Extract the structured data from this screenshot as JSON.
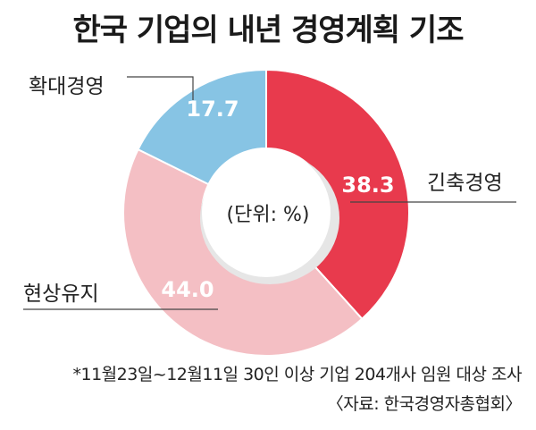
{
  "title": "한국 기업의 내년 경영계획 기조",
  "chart_data": {
    "type": "pie",
    "donut": true,
    "unit_label": "(단위: %)",
    "slices": [
      {
        "label": "긴축경영",
        "value": 38.3,
        "value_label": "38.3",
        "color": "#e83a4d"
      },
      {
        "label": "현상유지",
        "value": 44.0,
        "value_label": "44.0",
        "color": "#f4bfc4"
      },
      {
        "label": "확대경영",
        "value": 17.7,
        "value_label": "17.7",
        "color": "#87c4e4"
      }
    ]
  },
  "footnotes": {
    "survey": "*11월23일~12월11일 30인 이상 기업 204개사 임원 대상 조사",
    "source": "〈자료: 한국경영자총협회〉"
  }
}
